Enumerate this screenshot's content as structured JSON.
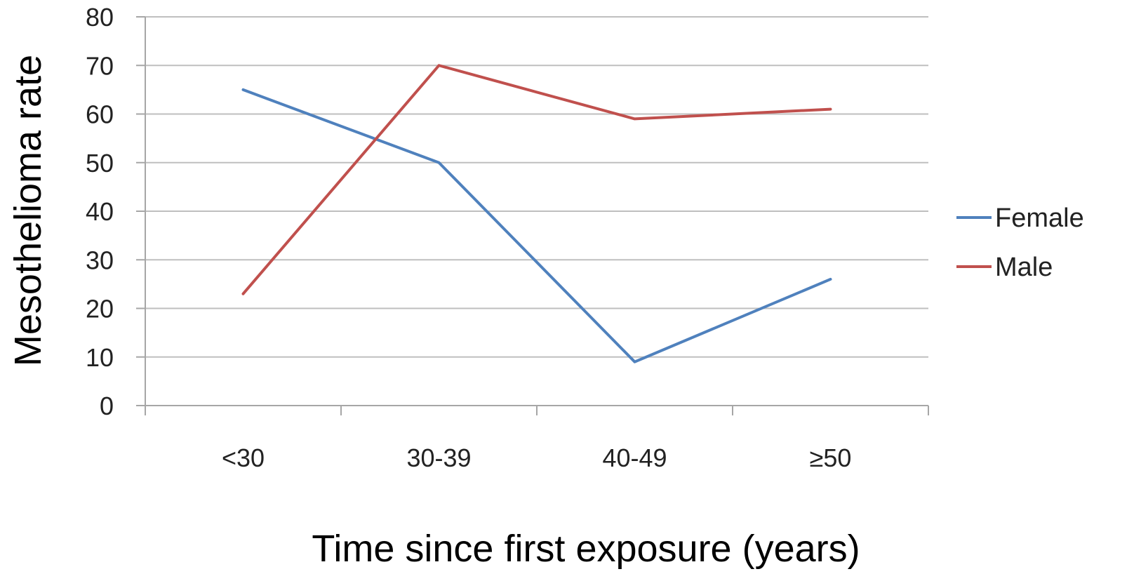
{
  "chart_data": {
    "type": "line",
    "title": "",
    "xlabel": "Time since first exposure (years)",
    "ylabel": "Mesothelioma rate",
    "categories": [
      "<30",
      "30-39",
      "40-49",
      "≥50"
    ],
    "series": [
      {
        "name": "Female",
        "values": [
          65,
          50,
          9,
          26
        ],
        "color": "#4f81bd"
      },
      {
        "name": "Male",
        "values": [
          23,
          70,
          59,
          61
        ],
        "color": "#c0504d"
      }
    ],
    "ylim": [
      0,
      80
    ],
    "yticks": [
      0,
      10,
      20,
      30,
      40,
      50,
      60,
      70,
      80
    ],
    "grid": true,
    "legend": "right"
  }
}
